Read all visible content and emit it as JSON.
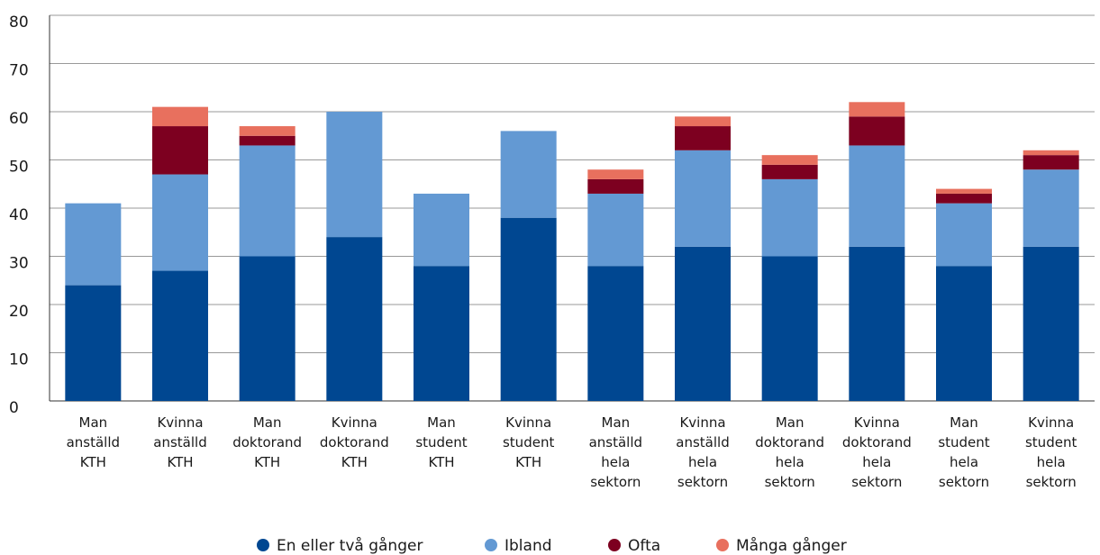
{
  "chart_data": {
    "type": "stacked_bar",
    "categories": [
      "Man\nanställd\nKTH",
      "Kvinna\nanställd\nKTH",
      "Man\ndoktorand\nKTH",
      "Kvinna\ndoktorand\nKTH",
      "Man\nstudent\nKTH",
      "Kvinna\nstudent\nKTH",
      "Man\nanställd\nhela\nsektorn",
      "Kvinna\nanställd\nhela\nsektorn",
      "Man\ndoktorand\nhela\nsektorn",
      "Kvinna\ndoktorand\nhela\nsektorn",
      "Man\nstudent\nhela\nsektorn",
      "Kvinna\nstudent\nhela\nsektorn"
    ],
    "series": [
      {
        "name": "En eller två gånger",
        "color": "#004791",
        "values": [
          24,
          27,
          30,
          34,
          28,
          38,
          28,
          32,
          30,
          32,
          28,
          32
        ]
      },
      {
        "name": "Ibland",
        "color": "#6399d3",
        "values": [
          17,
          20,
          23,
          26,
          15,
          18,
          15,
          20,
          16,
          21,
          13,
          16
        ]
      },
      {
        "name": "Ofta",
        "color": "#7d0020",
        "values": [
          0,
          10,
          2,
          0,
          0,
          0,
          3,
          5,
          3,
          6,
          2,
          3
        ]
      },
      {
        "name": "Många gånger",
        "color": "#e8705e",
        "values": [
          0,
          4,
          2,
          0,
          0,
          0,
          2,
          2,
          2,
          3,
          1,
          1
        ]
      }
    ],
    "ylim": [
      0,
      80
    ],
    "yticks": [
      0,
      10,
      20,
      30,
      40,
      50,
      60,
      70,
      80
    ],
    "grid": true,
    "legend": "bottom"
  }
}
